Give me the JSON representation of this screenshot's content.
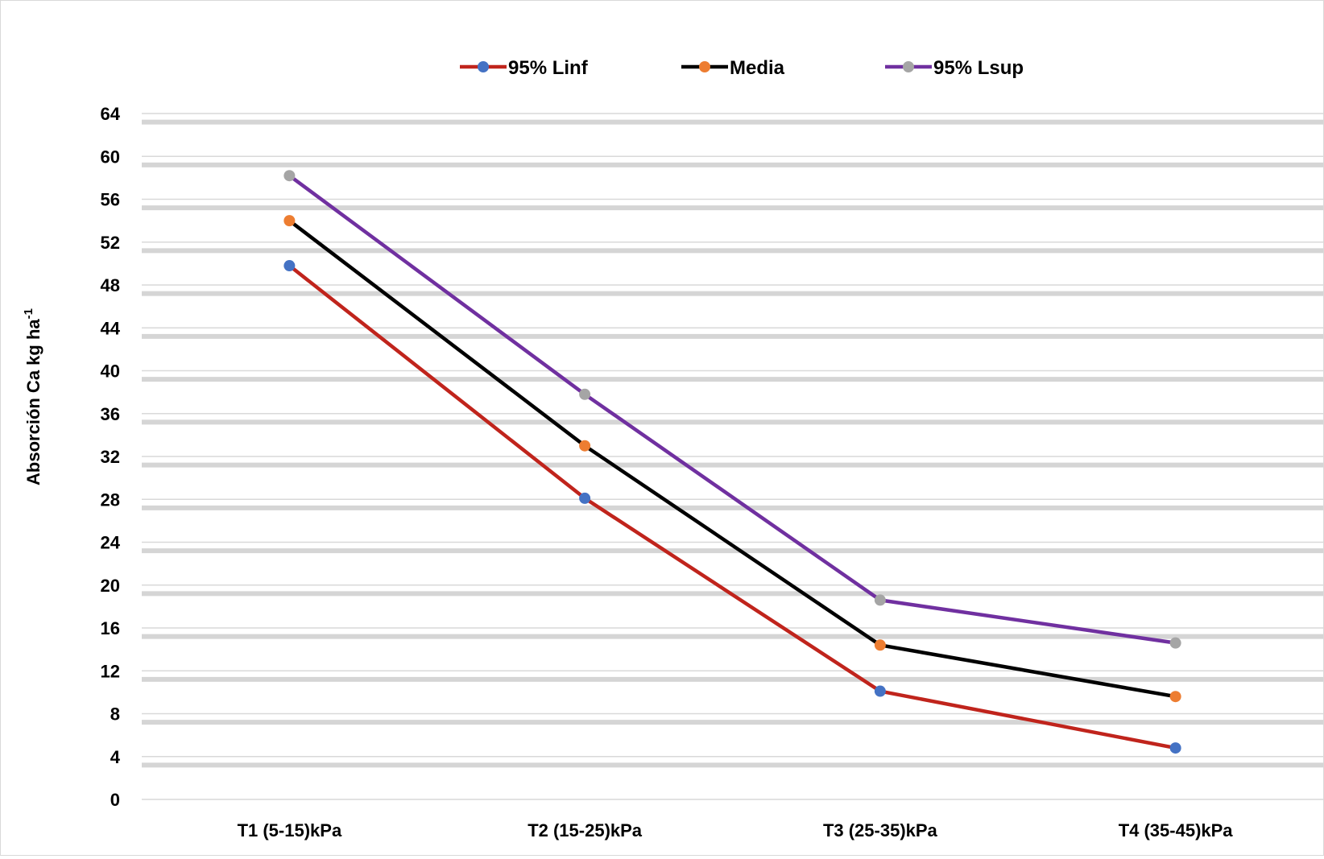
{
  "chart_data": {
    "type": "line",
    "title": "",
    "xlabel": "",
    "ylabel": "Absorción Ca kg ha",
    "ylabel_superscript": "-1",
    "categories": [
      "T1 (5-15)kPa",
      "T2 (15-25)kPa",
      "T3 (25-35)kPa",
      "T4 (35-45)kPa"
    ],
    "ylim": [
      0,
      64
    ],
    "yticks": [
      0,
      4,
      8,
      12,
      16,
      20,
      24,
      28,
      32,
      36,
      40,
      44,
      48,
      52,
      56,
      60,
      64
    ],
    "grid": true,
    "legend_position": "top",
    "series": [
      {
        "name": "95% Linf",
        "values": [
          49.8,
          28.1,
          10.1,
          4.8
        ],
        "line_color": "#c0241c",
        "marker_color": "#4472c4"
      },
      {
        "name": "Media",
        "values": [
          54.0,
          33.0,
          14.4,
          9.6
        ],
        "line_color": "#000000",
        "marker_color": "#ed7d31"
      },
      {
        "name": "95% Lsup",
        "values": [
          58.2,
          37.8,
          18.6,
          14.6
        ],
        "line_color": "#7030a0",
        "marker_color": "#a5a5a5"
      }
    ]
  }
}
